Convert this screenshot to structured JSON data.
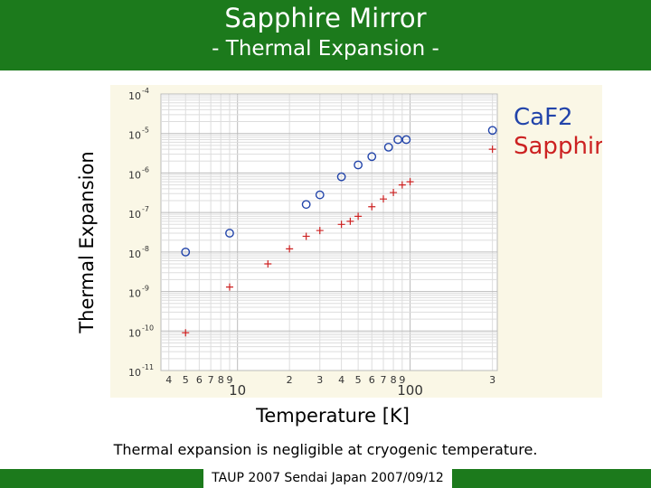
{
  "slide": {
    "title": "Sapphire Mirror",
    "subtitle": "- Thermal Expansion -",
    "caption": "Thermal expansion is negligible at cryogenic temperature.",
    "footer": "TAUP 2007 Sendai Japan 2007/09/12"
  },
  "colors": {
    "header_bg": "#1c7a1c",
    "plot_bg": "#faf7e6",
    "caf2": "#2244aa",
    "sapphire": "#cc2222"
  },
  "chart_data": {
    "type": "scatter",
    "title": "",
    "xlabel": "Temperature [K]",
    "ylabel": "Thermal Expansion",
    "xscale": "log",
    "yscale": "log",
    "xlim": [
      3.6,
      320
    ],
    "ylim": [
      1e-11,
      0.0001
    ],
    "grid": true,
    "legend_position": "top-right",
    "x_tick_labels": [
      {
        "value": 4,
        "label": "4"
      },
      {
        "value": 5,
        "label": "5"
      },
      {
        "value": 6,
        "label": "6"
      },
      {
        "value": 7,
        "label": "7"
      },
      {
        "value": 8,
        "label": "8"
      },
      {
        "value": 9,
        "label": "9"
      },
      {
        "value": 10,
        "label": "10"
      },
      {
        "value": 20,
        "label": "2"
      },
      {
        "value": 30,
        "label": "3"
      },
      {
        "value": 40,
        "label": "4"
      },
      {
        "value": 50,
        "label": "5"
      },
      {
        "value": 60,
        "label": "6"
      },
      {
        "value": 70,
        "label": "7"
      },
      {
        "value": 80,
        "label": "8"
      },
      {
        "value": 90,
        "label": "9"
      },
      {
        "value": 100,
        "label": "100"
      },
      {
        "value": 300,
        "label": "3"
      }
    ],
    "y_tick_labels": [
      {
        "value": 0.0001,
        "base": "10",
        "exp": "-4"
      },
      {
        "value": 1e-05,
        "base": "10",
        "exp": "-5"
      },
      {
        "value": 1e-06,
        "base": "10",
        "exp": "-6"
      },
      {
        "value": 1e-07,
        "base": "10",
        "exp": "-7"
      },
      {
        "value": 1e-08,
        "base": "10",
        "exp": "-8"
      },
      {
        "value": 1e-09,
        "base": "10",
        "exp": "-9"
      },
      {
        "value": 1e-10,
        "base": "10",
        "exp": "-10"
      },
      {
        "value": 1e-11,
        "base": "10",
        "exp": "-11"
      }
    ],
    "series": [
      {
        "name": "CaF2",
        "marker": "circle",
        "color": "#2244aa",
        "x": [
          5,
          9,
          25,
          30,
          40,
          50,
          60,
          75,
          85,
          95,
          300
        ],
        "y": [
          1e-08,
          3e-08,
          1.6e-07,
          2.8e-07,
          8e-07,
          1.6e-06,
          2.6e-06,
          4.5e-06,
          7e-06,
          7e-06,
          1.2e-05
        ]
      },
      {
        "name": "Sapphire",
        "marker": "plus",
        "color": "#cc2222",
        "x": [
          5,
          9,
          15,
          20,
          25,
          30,
          40,
          45,
          50,
          60,
          70,
          80,
          90,
          100,
          300
        ],
        "y": [
          9e-11,
          1.3e-09,
          5e-09,
          1.2e-08,
          2.5e-08,
          3.5e-08,
          5e-08,
          6e-08,
          8e-08,
          1.4e-07,
          2.2e-07,
          3.2e-07,
          5e-07,
          6e-07,
          4e-06
        ]
      }
    ]
  }
}
